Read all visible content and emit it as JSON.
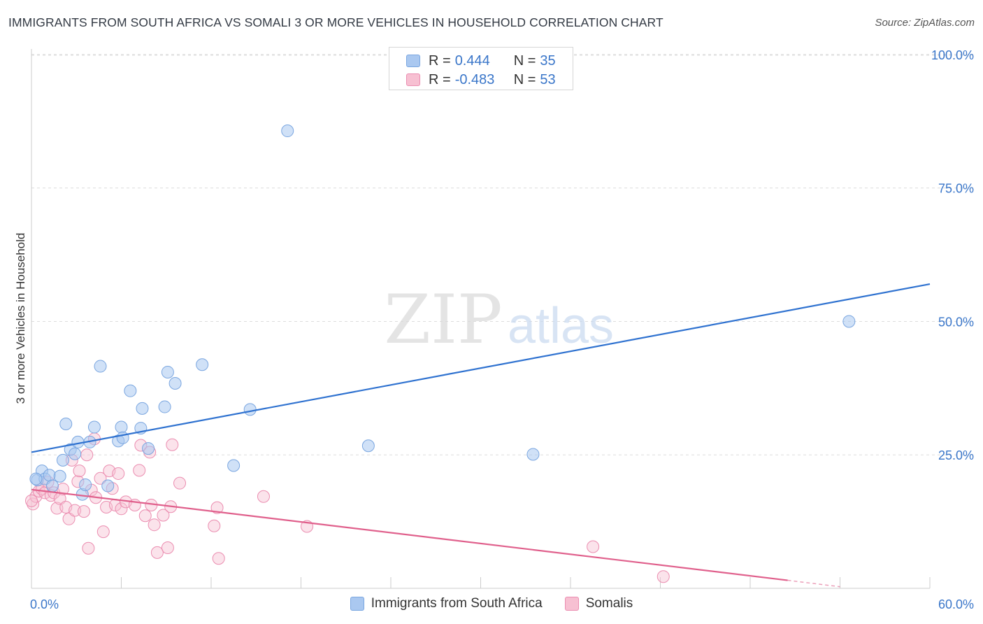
{
  "header": {
    "title": "IMMIGRANTS FROM SOUTH AFRICA VS SOMALI 3 OR MORE VEHICLES IN HOUSEHOLD CORRELATION CHART",
    "source": "Source: ZipAtlas.com"
  },
  "watermark": {
    "zip": "ZIP",
    "atlas": "atlas"
  },
  "stats_legend": {
    "rows": [
      {
        "r_label": "R =",
        "r_value": "0.444",
        "n_label": "N =",
        "n_value": "35",
        "color": "#aac8f0",
        "stroke": "#7aa6e0"
      },
      {
        "r_label": "R =",
        "r_value": "-0.483",
        "n_label": "N =",
        "n_value": "53",
        "color": "#f7c0d2",
        "stroke": "#eb8db0"
      }
    ]
  },
  "bottom_legend": {
    "items": [
      {
        "label": "Immigrants from South Africa",
        "color": "#aac8f0",
        "stroke": "#7aa6e0"
      },
      {
        "label": "Somalis",
        "color": "#f7c0d2",
        "stroke": "#eb8db0"
      }
    ]
  },
  "chart_data": {
    "type": "scatter",
    "title": "IMMIGRANTS FROM SOUTH AFRICA VS SOMALI 3 OR MORE VEHICLES IN HOUSEHOLD CORRELATION CHART",
    "xlabel": "",
    "ylabel": "3 or more Vehicles in Household",
    "xlim": [
      0,
      60
    ],
    "ylim": [
      0,
      105
    ],
    "x_tick_labels": [
      {
        "value": 0,
        "label": "0.0%"
      },
      {
        "value": 60,
        "label": "60.0%"
      }
    ],
    "y_tick_labels": [
      {
        "value": 25,
        "label": "25.0%"
      },
      {
        "value": 50,
        "label": "50.0%"
      },
      {
        "value": 75,
        "label": "75.0%"
      },
      {
        "value": 100,
        "label": "100.0%"
      }
    ],
    "grid": true,
    "series": [
      {
        "name": "Immigrants from South Africa",
        "color": "#aac8f0",
        "stroke": "#7aa6e0",
        "line_color": "#2f72d0",
        "trend": {
          "x": [
            0,
            60
          ],
          "y": [
            25.5,
            57.0
          ]
        },
        "points": [
          [
            0.4,
            20.3
          ],
          [
            0.7,
            22.0
          ],
          [
            0.9,
            20.5
          ],
          [
            1.2,
            21.2
          ],
          [
            1.4,
            19.2
          ],
          [
            1.9,
            21.0
          ],
          [
            2.1,
            24.0
          ],
          [
            2.3,
            30.8
          ],
          [
            2.6,
            26.0
          ],
          [
            2.9,
            25.2
          ],
          [
            3.1,
            27.4
          ],
          [
            3.4,
            17.6
          ],
          [
            3.6,
            19.4
          ],
          [
            3.9,
            27.4
          ],
          [
            4.2,
            30.2
          ],
          [
            4.6,
            41.6
          ],
          [
            5.1,
            19.2
          ],
          [
            5.8,
            27.6
          ],
          [
            6.0,
            30.2
          ],
          [
            6.1,
            28.2
          ],
          [
            6.6,
            37.0
          ],
          [
            7.3,
            30.0
          ],
          [
            7.4,
            33.7
          ],
          [
            7.8,
            26.2
          ],
          [
            8.9,
            34.0
          ],
          [
            9.1,
            40.5
          ],
          [
            9.6,
            38.4
          ],
          [
            11.4,
            41.9
          ],
          [
            13.5,
            23.0
          ],
          [
            14.6,
            33.5
          ],
          [
            17.1,
            85.7
          ],
          [
            22.5,
            26.7
          ],
          [
            33.5,
            25.1
          ],
          [
            54.6,
            50.0
          ],
          [
            0.3,
            20.5
          ]
        ]
      },
      {
        "name": "Somalis",
        "color": "#f7c0d2",
        "stroke": "#eb8db0",
        "line_color": "#e0608c",
        "trend_solid": {
          "x": [
            0,
            50.5
          ],
          "y": [
            18.5,
            1.5
          ]
        },
        "trend_dashed": {
          "x": [
            50.5,
            54
          ],
          "y": [
            1.5,
            0.3
          ]
        },
        "points": [
          [
            0.1,
            15.8
          ],
          [
            0.3,
            17.2
          ],
          [
            0.5,
            18.2
          ],
          [
            0.7,
            18.6
          ],
          [
            0.9,
            17.9
          ],
          [
            1.1,
            19.9
          ],
          [
            1.3,
            17.4
          ],
          [
            1.5,
            17.9
          ],
          [
            1.7,
            15.0
          ],
          [
            1.9,
            16.8
          ],
          [
            2.1,
            18.6
          ],
          [
            2.3,
            15.2
          ],
          [
            2.5,
            13.0
          ],
          [
            2.7,
            24.0
          ],
          [
            2.9,
            14.6
          ],
          [
            3.1,
            20.0
          ],
          [
            3.2,
            22.0
          ],
          [
            3.5,
            14.4
          ],
          [
            3.7,
            25.0
          ],
          [
            3.8,
            7.5
          ],
          [
            4.0,
            18.4
          ],
          [
            4.2,
            28.0
          ],
          [
            4.3,
            17.0
          ],
          [
            4.6,
            20.6
          ],
          [
            4.8,
            10.6
          ],
          [
            5.0,
            15.2
          ],
          [
            5.2,
            22.0
          ],
          [
            5.4,
            18.7
          ],
          [
            5.6,
            15.6
          ],
          [
            5.8,
            21.5
          ],
          [
            6.0,
            14.9
          ],
          [
            6.3,
            16.2
          ],
          [
            6.9,
            15.6
          ],
          [
            7.2,
            22.1
          ],
          [
            7.3,
            26.8
          ],
          [
            7.6,
            13.6
          ],
          [
            7.9,
            25.5
          ],
          [
            8.0,
            15.6
          ],
          [
            8.2,
            11.9
          ],
          [
            8.4,
            6.7
          ],
          [
            8.8,
            13.7
          ],
          [
            9.1,
            7.6
          ],
          [
            9.3,
            15.3
          ],
          [
            9.4,
            26.9
          ],
          [
            9.9,
            19.7
          ],
          [
            12.2,
            11.7
          ],
          [
            12.4,
            15.1
          ],
          [
            12.5,
            5.6
          ],
          [
            15.5,
            17.2
          ],
          [
            18.4,
            11.6
          ],
          [
            37.5,
            7.8
          ],
          [
            42.2,
            2.2
          ],
          [
            0.0,
            16.4
          ]
        ]
      }
    ]
  }
}
